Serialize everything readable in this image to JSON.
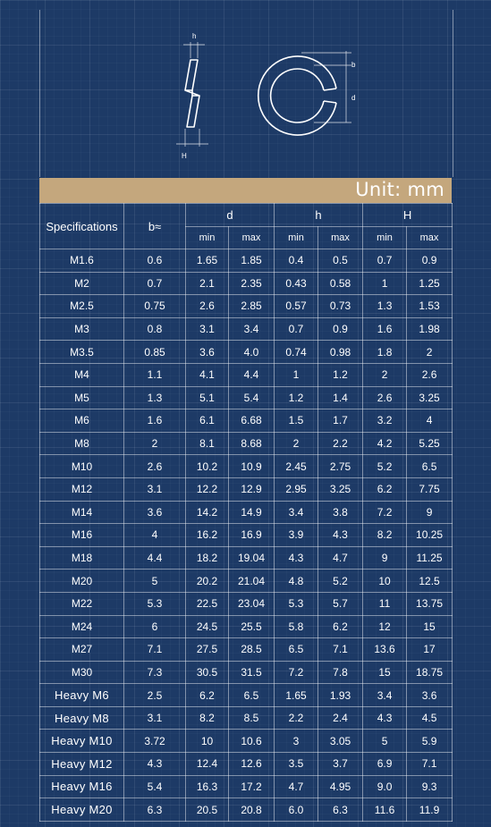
{
  "diagram": {
    "side_labels": {
      "h": "h",
      "H": "H"
    },
    "front_labels": {
      "b": "b",
      "d": "d"
    }
  },
  "unit_label": "Unit: mm",
  "table": {
    "header_spec": "Specifications",
    "header_b": "b≈",
    "groups": [
      "d",
      "h",
      "H"
    ],
    "sub_headers": [
      "min",
      "max",
      "min",
      "max",
      "min",
      "max"
    ],
    "rows": [
      {
        "spec": "M1.6",
        "b": "0.6",
        "d_min": "1.65",
        "d_max": "1.85",
        "h_min": "0.4",
        "h_max": "0.5",
        "H_min": "0.7",
        "H_max": "0.9"
      },
      {
        "spec": "M2",
        "b": "0.7",
        "d_min": "2.1",
        "d_max": "2.35",
        "h_min": "0.43",
        "h_max": "0.58",
        "H_min": "1",
        "H_max": "1.25"
      },
      {
        "spec": "M2.5",
        "b": "0.75",
        "d_min": "2.6",
        "d_max": "2.85",
        "h_min": "0.57",
        "h_max": "0.73",
        "H_min": "1.3",
        "H_max": "1.53"
      },
      {
        "spec": "M3",
        "b": "0.8",
        "d_min": "3.1",
        "d_max": "3.4",
        "h_min": "0.7",
        "h_max": "0.9",
        "H_min": "1.6",
        "H_max": "1.98"
      },
      {
        "spec": "M3.5",
        "b": "0.85",
        "d_min": "3.6",
        "d_max": "4.0",
        "h_min": "0.74",
        "h_max": "0.98",
        "H_min": "1.8",
        "H_max": "2"
      },
      {
        "spec": "M4",
        "b": "1.1",
        "d_min": "4.1",
        "d_max": "4.4",
        "h_min": "1",
        "h_max": "1.2",
        "H_min": "2",
        "H_max": "2.6"
      },
      {
        "spec": "M5",
        "b": "1.3",
        "d_min": "5.1",
        "d_max": "5.4",
        "h_min": "1.2",
        "h_max": "1.4",
        "H_min": "2.6",
        "H_max": "3.25"
      },
      {
        "spec": "M6",
        "b": "1.6",
        "d_min": "6.1",
        "d_max": "6.68",
        "h_min": "1.5",
        "h_max": "1.7",
        "H_min": "3.2",
        "H_max": "4"
      },
      {
        "spec": "M8",
        "b": "2",
        "d_min": "8.1",
        "d_max": "8.68",
        "h_min": "2",
        "h_max": "2.2",
        "H_min": "4.2",
        "H_max": "5.25"
      },
      {
        "spec": "M10",
        "b": "2.6",
        "d_min": "10.2",
        "d_max": "10.9",
        "h_min": "2.45",
        "h_max": "2.75",
        "H_min": "5.2",
        "H_max": "6.5"
      },
      {
        "spec": "M12",
        "b": "3.1",
        "d_min": "12.2",
        "d_max": "12.9",
        "h_min": "2.95",
        "h_max": "3.25",
        "H_min": "6.2",
        "H_max": "7.75"
      },
      {
        "spec": "M14",
        "b": "3.6",
        "d_min": "14.2",
        "d_max": "14.9",
        "h_min": "3.4",
        "h_max": "3.8",
        "H_min": "7.2",
        "H_max": "9"
      },
      {
        "spec": "M16",
        "b": "4",
        "d_min": "16.2",
        "d_max": "16.9",
        "h_min": "3.9",
        "h_max": "4.3",
        "H_min": "8.2",
        "H_max": "10.25"
      },
      {
        "spec": "M18",
        "b": "4.4",
        "d_min": "18.2",
        "d_max": "19.04",
        "h_min": "4.3",
        "h_max": "4.7",
        "H_min": "9",
        "H_max": "11.25"
      },
      {
        "spec": "M20",
        "b": "5",
        "d_min": "20.2",
        "d_max": "21.04",
        "h_min": "4.8",
        "h_max": "5.2",
        "H_min": "10",
        "H_max": "12.5"
      },
      {
        "spec": "M22",
        "b": "5.3",
        "d_min": "22.5",
        "d_max": "23.04",
        "h_min": "5.3",
        "h_max": "5.7",
        "H_min": "11",
        "H_max": "13.75"
      },
      {
        "spec": "M24",
        "b": "6",
        "d_min": "24.5",
        "d_max": "25.5",
        "h_min": "5.8",
        "h_max": "6.2",
        "H_min": "12",
        "H_max": "15"
      },
      {
        "spec": "M27",
        "b": "7.1",
        "d_min": "27.5",
        "d_max": "28.5",
        "h_min": "6.5",
        "h_max": "7.1",
        "H_min": "13.6",
        "H_max": "17"
      },
      {
        "spec": "M30",
        "b": "7.3",
        "d_min": "30.5",
        "d_max": "31.5",
        "h_min": "7.2",
        "h_max": "7.8",
        "H_min": "15",
        "H_max": "18.75"
      },
      {
        "spec": "Heavy M6",
        "b": "2.5",
        "d_min": "6.2",
        "d_max": "6.5",
        "h_min": "1.65",
        "h_max": "1.93",
        "H_min": "3.4",
        "H_max": "3.6"
      },
      {
        "spec": "Heavy M8",
        "b": "3.1",
        "d_min": "8.2",
        "d_max": "8.5",
        "h_min": "2.2",
        "h_max": "2.4",
        "H_min": "4.3",
        "H_max": "4.5"
      },
      {
        "spec": "Heavy M10",
        "b": "3.72",
        "d_min": "10",
        "d_max": "10.6",
        "h_min": "3",
        "h_max": "3.05",
        "H_min": "5",
        "H_max": "5.9"
      },
      {
        "spec": "Heavy M12",
        "b": "4.3",
        "d_min": "12.4",
        "d_max": "12.6",
        "h_min": "3.5",
        "h_max": "3.7",
        "H_min": "6.9",
        "H_max": "7.1"
      },
      {
        "spec": "Heavy M16",
        "b": "5.4",
        "d_min": "16.3",
        "d_max": "17.2",
        "h_min": "4.7",
        "h_max": "4.95",
        "H_min": "9.0",
        "H_max": "9.3"
      },
      {
        "spec": "Heavy M20",
        "b": "6.3",
        "d_min": "20.5",
        "d_max": "20.8",
        "h_min": "6.0",
        "h_max": "6.3",
        "H_min": "11.6",
        "H_max": "11.9"
      }
    ]
  },
  "colors": {
    "background": "#1d3a66",
    "unit_bar": "#c4a77d",
    "line": "#ffffff"
  }
}
